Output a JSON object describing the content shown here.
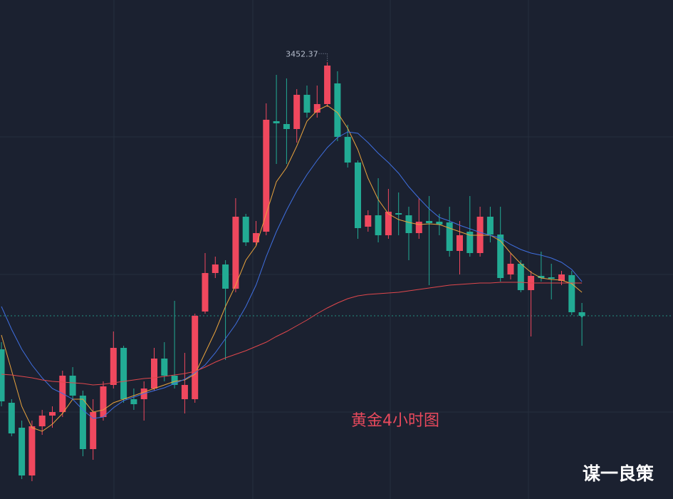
{
  "chart_data": {
    "type": "candlestick",
    "title": "黄金4小时图",
    "watermark": "谋一良策",
    "up_color": "#f0485e",
    "down_color": "#22ab94",
    "ylim": [
      3146,
      3496
    ],
    "open": [
      3251,
      3213.5,
      3196,
      3162.5,
      3197,
      3204.5,
      3207,
      3232.5,
      3218.5,
      3181,
      3203.5,
      3226,
      3252,
      3216,
      3216,
      3223.5,
      3244.5,
      3232.5,
      3216,
      3216,
      3277.5,
      3304.5,
      3310.5,
      3293.5,
      3344,
      3326,
      3333.5,
      3411,
      3409,
      3405.5,
      3429.5,
      3417,
      3423,
      3437.5,
      3400,
      3382,
      3337,
      3345,
      3331,
      3346.5,
      3345,
      3332.5,
      3341,
      3340.5,
      3340,
      3320,
      3333.5,
      3318.5,
      3344,
      3331.5,
      3303.5,
      3311,
      3292.5,
      3302.5,
      3301.5,
      3299,
      3303,
      3277
    ],
    "high": [
      3256,
      3216,
      3201,
      3201,
      3208.5,
      3211,
      3236,
      3238.5,
      3222,
      3216,
      3228.5,
      3263.5,
      3253.5,
      3223.5,
      3228.5,
      3252,
      3256,
      3285,
      3248.5,
      3276,
      3318.5,
      3316,
      3313.5,
      3357,
      3346,
      3341,
      3423.5,
      3443.5,
      3441,
      3433.5,
      3436,
      3436,
      3452.37,
      3446,
      3408.5,
      3383.5,
      3348.5,
      3371,
      3363.5,
      3361,
      3351,
      3357,
      3358.5,
      3346,
      3351,
      3341,
      3358.5,
      3351,
      3351,
      3351,
      3318.5,
      3313.5,
      3306,
      3319.5,
      3311,
      3306,
      3306,
      3283.5
    ],
    "low": [
      3211,
      3190,
      3160,
      3158.5,
      3191,
      3196,
      3203.5,
      3216,
      3176,
      3173.5,
      3201,
      3223.5,
      3213.5,
      3208.5,
      3201,
      3222,
      3228.5,
      3223.5,
      3206,
      3213.5,
      3276,
      3301,
      3243.5,
      3291,
      3323.5,
      3323.5,
      3331,
      3381,
      3381,
      3396,
      3413.5,
      3413.5,
      3421,
      3397,
      3378.5,
      3328.5,
      3333.5,
      3326,
      3328.5,
      3331,
      3313.5,
      3328.5,
      3296,
      3331,
      3316,
      3303.5,
      3316,
      3316,
      3326,
      3298.5,
      3300,
      3291,
      3260,
      3298.5,
      3286,
      3296,
      3275,
      3253.5
    ],
    "close": [
      3214.5,
      3192,
      3162.5,
      3197,
      3204.5,
      3207,
      3232.5,
      3218.5,
      3181,
      3207,
      3225,
      3252,
      3216,
      3212.5,
      3223.5,
      3244.5,
      3232.5,
      3226,
      3226,
      3274.5,
      3304.5,
      3310.5,
      3293.5,
      3344,
      3326,
      3332.5,
      3412,
      3409.5,
      3405.5,
      3429.5,
      3417,
      3423,
      3450,
      3400,
      3382,
      3336,
      3345,
      3331,
      3347.5,
      3345.5,
      3332.5,
      3340.5,
      3339.5,
      3338.5,
      3320,
      3331,
      3318.5,
      3344,
      3331.5,
      3301,
      3311,
      3292.5,
      3302.5,
      3301,
      3300.5,
      3303.5,
      3277,
      3274.5
    ],
    "moving_averages": [
      {
        "color": "#e8a33d",
        "values": [
          3261,
          3236,
          3211,
          3196,
          3193.5,
          3198.5,
          3206,
          3216,
          3216,
          3207,
          3208.5,
          3213.5,
          3216,
          3218.5,
          3221,
          3223.5,
          3226,
          3228.5,
          3229.5,
          3233.5,
          3248.5,
          3263.5,
          3281,
          3296,
          3313.5,
          3323.5,
          3346,
          3368.5,
          3378.5,
          3393.5,
          3411,
          3418.5,
          3422,
          3417,
          3406,
          3391,
          3371,
          3356,
          3346,
          3342,
          3340,
          3338.5,
          3339,
          3338.5,
          3336,
          3333.5,
          3331,
          3331,
          3331,
          3327,
          3318.5,
          3311,
          3305,
          3301,
          3300,
          3299.5,
          3297,
          3291
        ]
      },
      {
        "color": "#3f6fe0",
        "values": [
          3281,
          3265,
          3251,
          3240,
          3231,
          3223.5,
          3220,
          3216,
          3208.5,
          3202.5,
          3203.5,
          3210,
          3215,
          3217.5,
          3220,
          3222,
          3224,
          3227,
          3230,
          3234.5,
          3240,
          3248.5,
          3258.5,
          3268.5,
          3281,
          3296,
          3316,
          3333.5,
          3348.5,
          3362,
          3373.5,
          3383.5,
          3392.5,
          3399.5,
          3403.5,
          3402.5,
          3396,
          3388.5,
          3382,
          3374.5,
          3365,
          3357,
          3349.5,
          3343.5,
          3341,
          3338,
          3335.5,
          3333,
          3331,
          3329,
          3324.5,
          3321,
          3318.5,
          3317,
          3315,
          3312,
          3307,
          3298.5
        ]
      },
      {
        "color": "#e0474c",
        "values": [
          3233.5,
          3233,
          3232,
          3231,
          3229.5,
          3228.5,
          3228,
          3227.5,
          3227,
          3226,
          3226.5,
          3227.5,
          3228.5,
          3229.5,
          3230.5,
          3231,
          3232,
          3233,
          3234,
          3235.5,
          3238.5,
          3242,
          3245,
          3247.5,
          3250,
          3253,
          3256,
          3260,
          3263.5,
          3267.5,
          3271.5,
          3276,
          3280,
          3283.5,
          3286.5,
          3288.5,
          3289.5,
          3290,
          3290.5,
          3291,
          3292,
          3293,
          3294,
          3295,
          3296,
          3296.5,
          3297,
          3297.5,
          3297.5,
          3298,
          3298,
          3298,
          3297.5,
          3297.5,
          3297.5,
          3297.5,
          3297.5,
          3297.5
        ]
      }
    ]
  }
}
